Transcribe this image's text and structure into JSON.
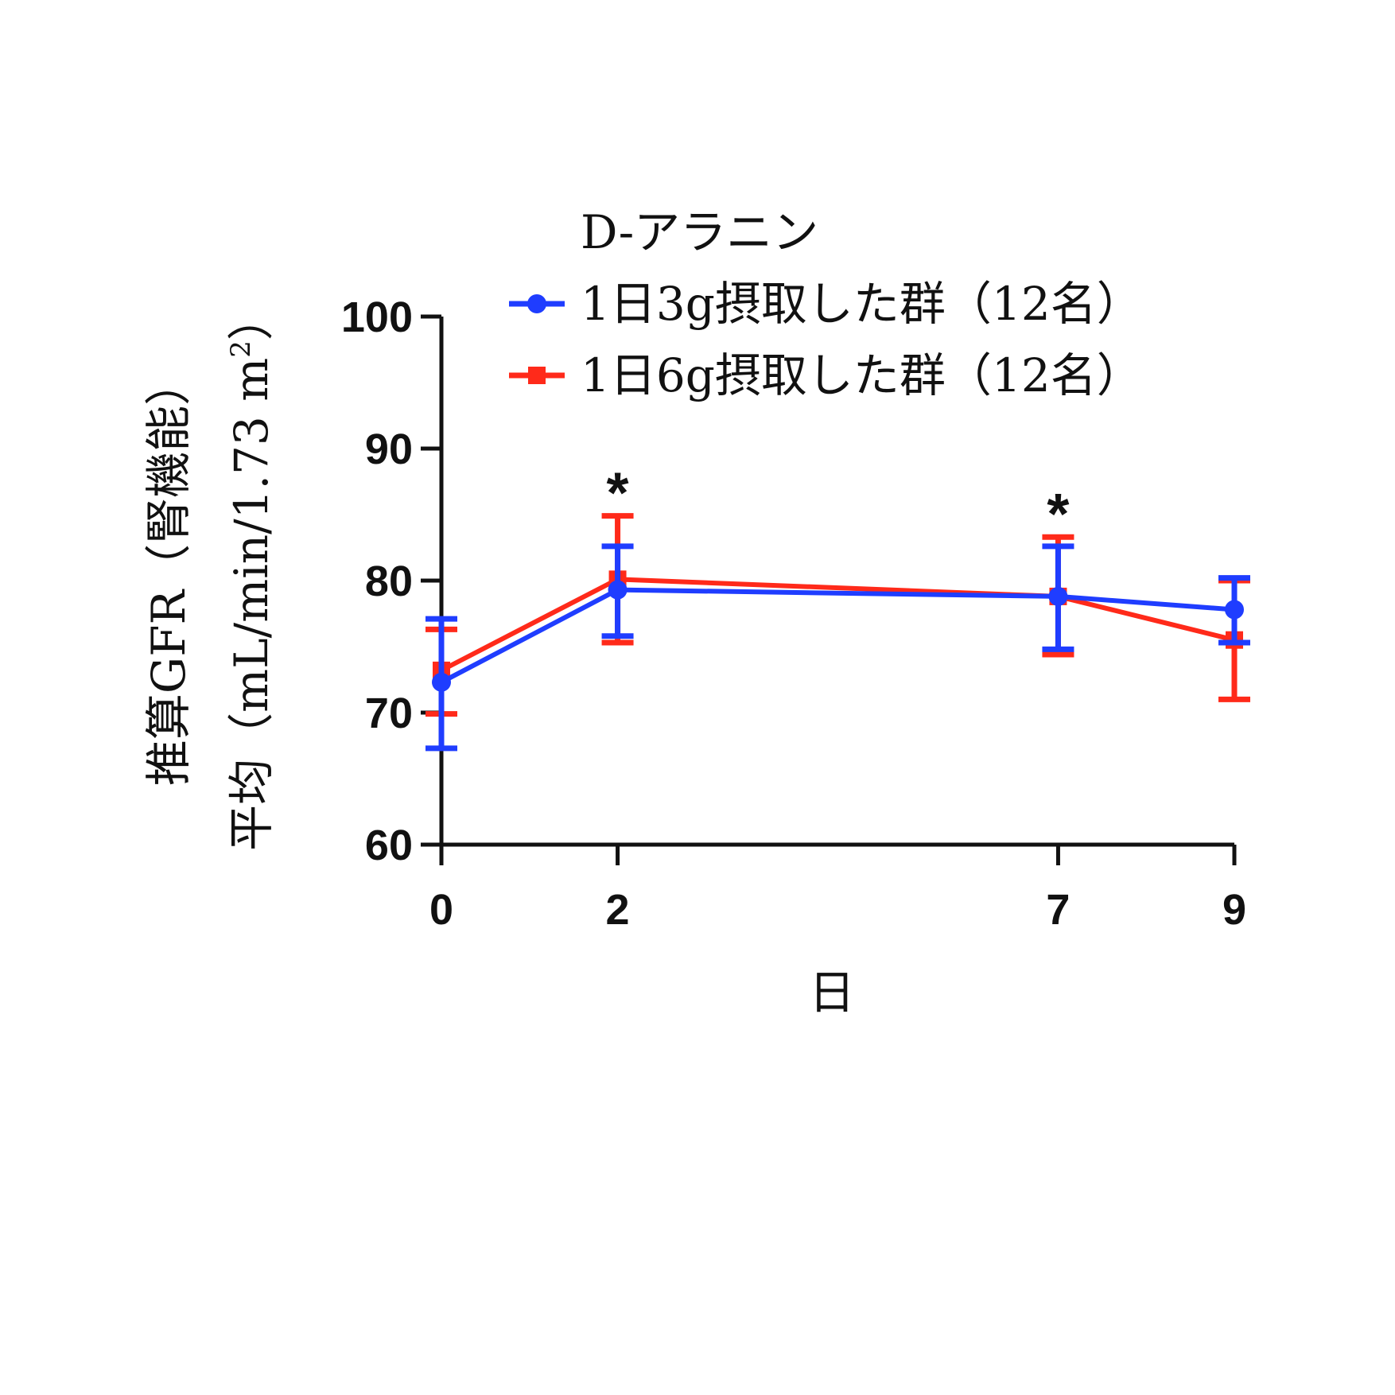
{
  "chart_data": {
    "type": "line",
    "legend_title": "D-アラニン",
    "legend_position": "top-right",
    "xlabel": "日",
    "ylabel_line1": "推算GFR（腎機能）",
    "ylabel_line2": "平均（mL/min/1.73 m",
    "ylabel_superscript": "2",
    "ylabel_close": "）",
    "x": [
      0,
      2,
      7,
      9
    ],
    "x_tick_labels": [
      "0",
      "2",
      "7",
      "9"
    ],
    "xlim": [
      0,
      9
    ],
    "ylim": [
      60,
      100
    ],
    "y_ticks": [
      60,
      70,
      80,
      90,
      100
    ],
    "y_tick_labels": [
      "60",
      "70",
      "80",
      "90",
      "100"
    ],
    "grid": false,
    "series": [
      {
        "name": "1日3g摂取した群（12名）",
        "color": "#1f3dff",
        "marker": "circle",
        "values": [
          72.3,
          79.3,
          78.8,
          77.8
        ],
        "err_low": [
          67.3,
          75.8,
          74.8,
          75.3
        ],
        "err_high": [
          77.1,
          82.6,
          82.6,
          80.2
        ]
      },
      {
        "name": "1日6g摂取した群（12名）",
        "color": "#ff2a1a",
        "marker": "square",
        "values": [
          73.2,
          80.1,
          78.8,
          75.5
        ],
        "err_low": [
          69.9,
          75.3,
          74.4,
          71.0
        ],
        "err_high": [
          76.3,
          84.9,
          83.3,
          80.0
        ]
      }
    ],
    "annotations": [
      {
        "text": "*",
        "x": 2
      },
      {
        "text": "*",
        "x": 7
      }
    ]
  }
}
